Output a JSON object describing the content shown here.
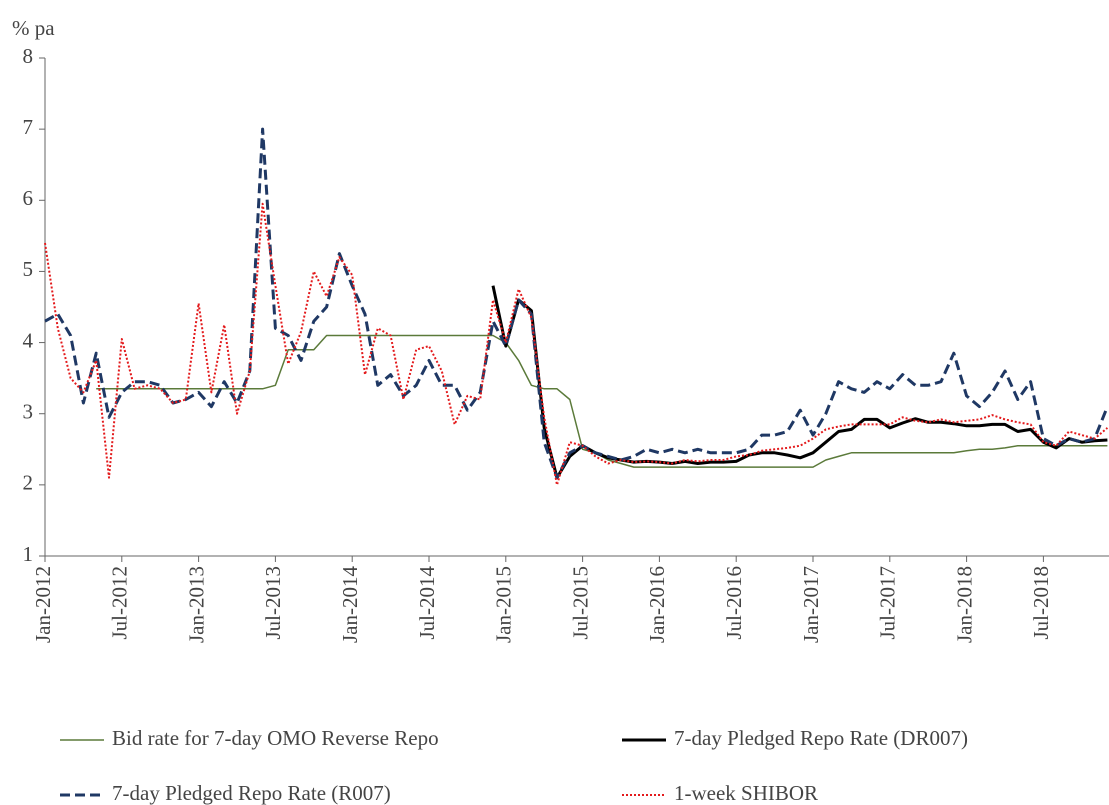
{
  "chart_data": {
    "type": "line",
    "y_label": "% pa",
    "categories": [
      "Jan-2012",
      null,
      null,
      null,
      null,
      null,
      "Jul-2012",
      null,
      null,
      null,
      null,
      null,
      "Jan-2013",
      null,
      null,
      null,
      null,
      null,
      "Jul-2013",
      null,
      null,
      null,
      null,
      null,
      "Jan-2014",
      null,
      null,
      null,
      null,
      null,
      "Jul-2014",
      null,
      null,
      null,
      null,
      null,
      "Jan-2015",
      null,
      null,
      null,
      null,
      null,
      "Jul-2015",
      null,
      null,
      null,
      null,
      null,
      "Jan-2016",
      null,
      null,
      null,
      null,
      null,
      "Jul-2016",
      null,
      null,
      null,
      null,
      null,
      "Jan-2017",
      null,
      null,
      null,
      null,
      null,
      "Jul-2017",
      null,
      null,
      null,
      null,
      null,
      "Jan-2018",
      null,
      null,
      null,
      null,
      null,
      "Jul-2018",
      null,
      null,
      null,
      null,
      null
    ],
    "ylim": [
      1,
      8
    ],
    "yticks": [
      1,
      2,
      3,
      4,
      5,
      6,
      7,
      8
    ],
    "series": [
      {
        "name": "Bid rate for 7-day OMO Reverse Repo",
        "color": "#5b7a3a",
        "style": "solid",
        "width": 1.5,
        "values": [
          null,
          null,
          null,
          null,
          3.35,
          3.35,
          3.35,
          3.35,
          3.35,
          3.35,
          3.35,
          3.35,
          3.35,
          3.35,
          3.35,
          3.35,
          3.35,
          3.35,
          3.4,
          3.9,
          3.9,
          3.9,
          4.1,
          4.1,
          4.1,
          4.1,
          4.1,
          4.1,
          4.1,
          4.1,
          4.1,
          4.1,
          4.1,
          4.1,
          4.1,
          4.1,
          4.0,
          3.75,
          3.4,
          3.35,
          3.35,
          3.2,
          2.5,
          2.45,
          2.35,
          2.3,
          2.25,
          2.25,
          2.25,
          2.25,
          2.25,
          2.25,
          2.25,
          2.25,
          2.25,
          2.25,
          2.25,
          2.25,
          2.25,
          2.25,
          2.25,
          2.35,
          2.4,
          2.45,
          2.45,
          2.45,
          2.45,
          2.45,
          2.45,
          2.45,
          2.45,
          2.45,
          2.48,
          2.5,
          2.5,
          2.52,
          2.55,
          2.55,
          2.55,
          2.55,
          2.55,
          2.55,
          2.55,
          2.55
        ]
      },
      {
        "name": "7-day Pledged Repo Rate (DR007)",
        "color": "#000000",
        "style": "solid",
        "width": 3,
        "values": [
          null,
          null,
          null,
          null,
          null,
          null,
          null,
          null,
          null,
          null,
          null,
          null,
          null,
          null,
          null,
          null,
          null,
          null,
          null,
          null,
          null,
          null,
          null,
          null,
          null,
          null,
          null,
          null,
          null,
          null,
          null,
          null,
          null,
          null,
          null,
          4.8,
          3.95,
          4.6,
          4.45,
          2.8,
          2.1,
          2.4,
          2.55,
          2.45,
          2.38,
          2.35,
          2.32,
          2.33,
          2.32,
          2.3,
          2.33,
          2.3,
          2.32,
          2.32,
          2.33,
          2.42,
          2.45,
          2.45,
          2.42,
          2.38,
          2.45,
          2.6,
          2.75,
          2.78,
          2.92,
          2.92,
          2.8,
          2.87,
          2.93,
          2.88,
          2.88,
          2.86,
          2.83,
          2.83,
          2.85,
          2.85,
          2.75,
          2.78,
          2.6,
          2.52,
          2.65,
          2.6,
          2.62,
          2.63
        ]
      },
      {
        "name": "7-day Pledged Repo Rate (R007)",
        "color": "#1f3864",
        "style": "dashed",
        "width": 3,
        "values": [
          4.3,
          4.4,
          4.1,
          3.15,
          3.85,
          2.95,
          3.3,
          3.45,
          3.45,
          3.4,
          3.15,
          3.2,
          3.3,
          3.1,
          3.45,
          3.15,
          3.6,
          7.0,
          4.2,
          4.1,
          3.75,
          4.3,
          4.5,
          5.25,
          4.8,
          4.4,
          3.4,
          3.55,
          3.25,
          3.4,
          3.75,
          3.4,
          3.4,
          3.05,
          3.3,
          4.3,
          3.95,
          4.6,
          4.4,
          2.6,
          2.1,
          2.45,
          2.55,
          2.45,
          2.4,
          2.35,
          2.4,
          2.5,
          2.45,
          2.5,
          2.45,
          2.5,
          2.45,
          2.45,
          2.45,
          2.5,
          2.7,
          2.7,
          2.75,
          3.05,
          2.7,
          3.0,
          3.45,
          3.35,
          3.3,
          3.45,
          3.35,
          3.55,
          3.4,
          3.4,
          3.45,
          3.85,
          3.25,
          3.1,
          3.3,
          3.6,
          3.2,
          3.45,
          2.65,
          2.55,
          2.65,
          2.6,
          2.65,
          3.1
        ]
      },
      {
        "name": "1-week SHIBOR",
        "color": "#e31a1c",
        "style": "dotted",
        "width": 2,
        "values": [
          5.4,
          4.2,
          3.5,
          3.3,
          3.75,
          2.1,
          4.05,
          3.35,
          3.4,
          3.35,
          3.15,
          3.2,
          4.55,
          3.3,
          4.25,
          3.0,
          3.6,
          5.95,
          4.8,
          3.7,
          4.15,
          5.0,
          4.65,
          5.2,
          4.95,
          3.55,
          4.2,
          4.1,
          3.2,
          3.9,
          3.95,
          3.6,
          2.85,
          3.25,
          3.2,
          4.6,
          4.0,
          4.75,
          4.35,
          2.95,
          2.0,
          2.6,
          2.55,
          2.4,
          2.3,
          2.35,
          2.32,
          2.33,
          2.32,
          2.3,
          2.35,
          2.33,
          2.35,
          2.35,
          2.4,
          2.42,
          2.48,
          2.5,
          2.52,
          2.55,
          2.65,
          2.78,
          2.82,
          2.85,
          2.85,
          2.85,
          2.85,
          2.95,
          2.9,
          2.88,
          2.92,
          2.88,
          2.9,
          2.92,
          2.98,
          2.92,
          2.88,
          2.85,
          2.6,
          2.55,
          2.75,
          2.7,
          2.65,
          2.8
        ]
      }
    ]
  }
}
